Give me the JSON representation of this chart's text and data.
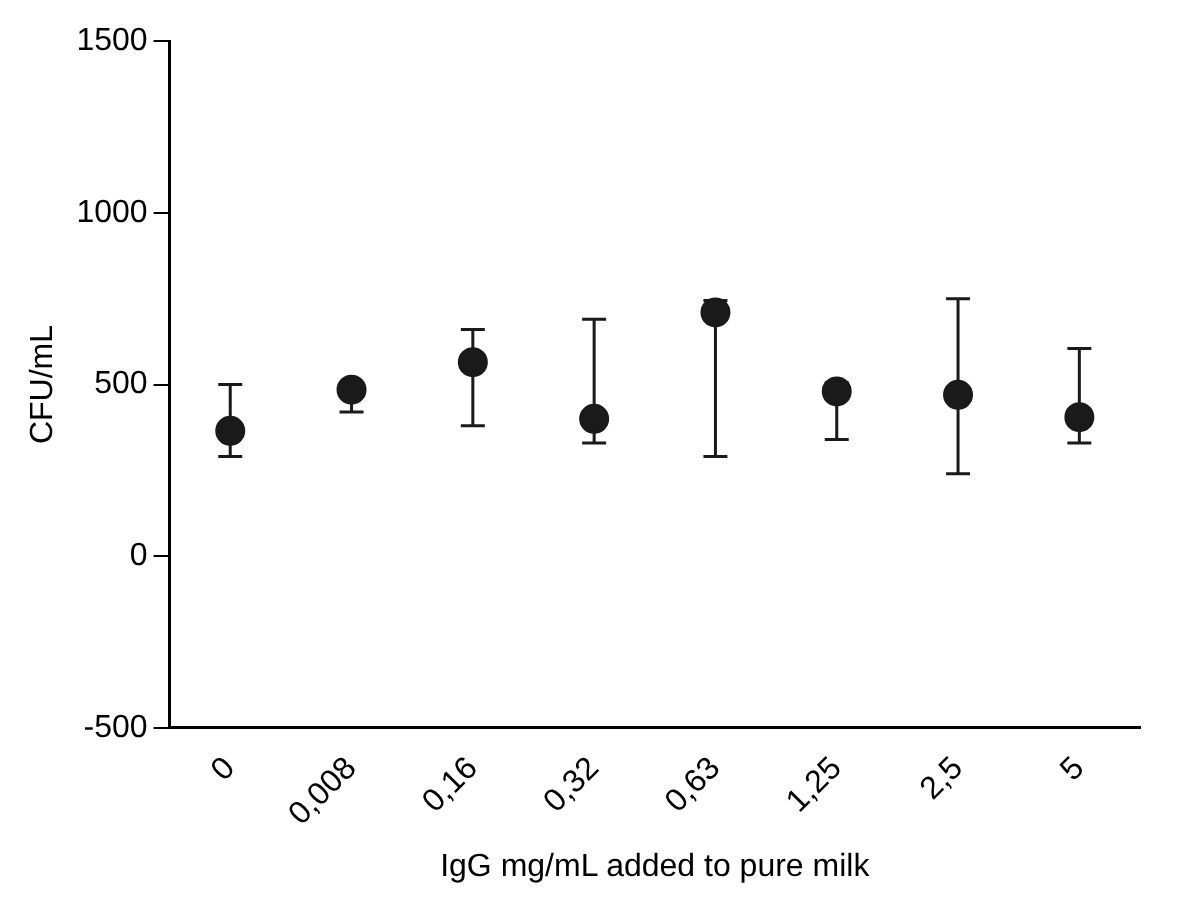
{
  "chart_data": {
    "type": "scatter",
    "xlabel": "IgG mg/mL added to pure milk",
    "ylabel": "CFU/mL",
    "categories": [
      "0",
      "0,008",
      "0,16",
      "0,32",
      "0,63",
      "1,25",
      "2,5",
      "5"
    ],
    "series": [
      {
        "color": "#1a1a1a",
        "values": [
          365,
          485,
          565,
          400,
          710,
          480,
          470,
          405
        ],
        "errors": [
          [
            290,
            500
          ],
          [
            420,
            485
          ],
          [
            380,
            660
          ],
          [
            330,
            690
          ],
          [
            290,
            745
          ],
          [
            340,
            505
          ],
          [
            240,
            750
          ],
          [
            330,
            605
          ]
        ]
      }
    ],
    "ylim": [
      -500,
      1500
    ],
    "yticks": [
      -500,
      0,
      500,
      1000,
      1500
    ],
    "grid": false,
    "legend": false,
    "marker": "circle"
  }
}
